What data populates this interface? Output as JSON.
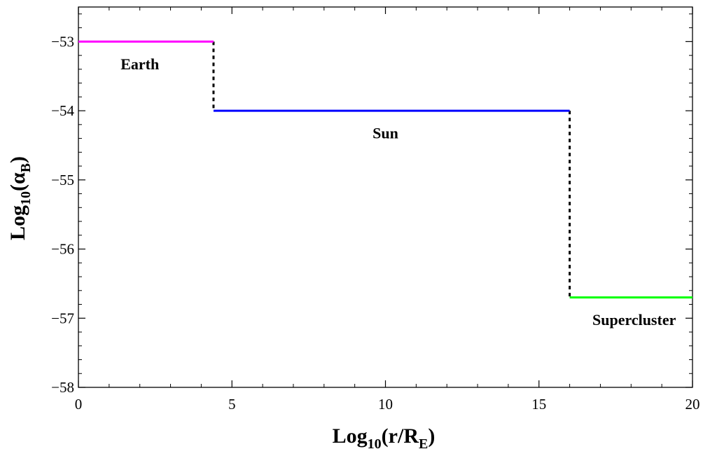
{
  "chart_data": {
    "type": "line",
    "xlabel": {
      "main": "Log",
      "sub": "10",
      "rest_pre": "(r/R",
      "sub2": "E",
      "rest_post": ")"
    },
    "ylabel": {
      "main": "Log",
      "sub": "10",
      "rest_pre": "(α",
      "sub2": "B",
      "rest_post": ")"
    },
    "xlim": [
      0,
      20
    ],
    "ylim": [
      -58,
      -52.5
    ],
    "xticks": [
      {
        "value": 0,
        "label": "0"
      },
      {
        "value": 5,
        "label": "5"
      },
      {
        "value": 10,
        "label": "10"
      },
      {
        "value": 15,
        "label": "15"
      },
      {
        "value": 20,
        "label": "20"
      }
    ],
    "yticks": [
      {
        "value": -53,
        "label": "−53"
      },
      {
        "value": -54,
        "label": "−54"
      },
      {
        "value": -55,
        "label": "−55"
      },
      {
        "value": -56,
        "label": "−56"
      },
      {
        "value": -57,
        "label": "−57"
      },
      {
        "value": -58,
        "label": "−58"
      }
    ],
    "grid": false,
    "segments": [
      {
        "x": [
          0,
          4.4
        ],
        "y": -53,
        "color": "#ff00ff"
      },
      {
        "x": [
          4.4,
          16.0
        ],
        "y": -54,
        "color": "#0000ff"
      },
      {
        "x": [
          16.0,
          20
        ],
        "y": -56.7,
        "color": "#00ff00"
      }
    ],
    "connectors": [
      {
        "x": 4.4,
        "y": [
          -53,
          -54
        ],
        "color": "#000000",
        "style": "dotted"
      },
      {
        "x": 16.0,
        "y": [
          -54,
          -56.7
        ],
        "color": "#000000",
        "style": "dotted"
      }
    ],
    "annotations": [
      {
        "text": "Earth",
        "x": 2.0,
        "y": -53.4
      },
      {
        "text": "Sun",
        "x": 10.0,
        "y": -54.4
      },
      {
        "text": "Supercluster",
        "x": 18.1,
        "y": -57.1
      }
    ]
  }
}
